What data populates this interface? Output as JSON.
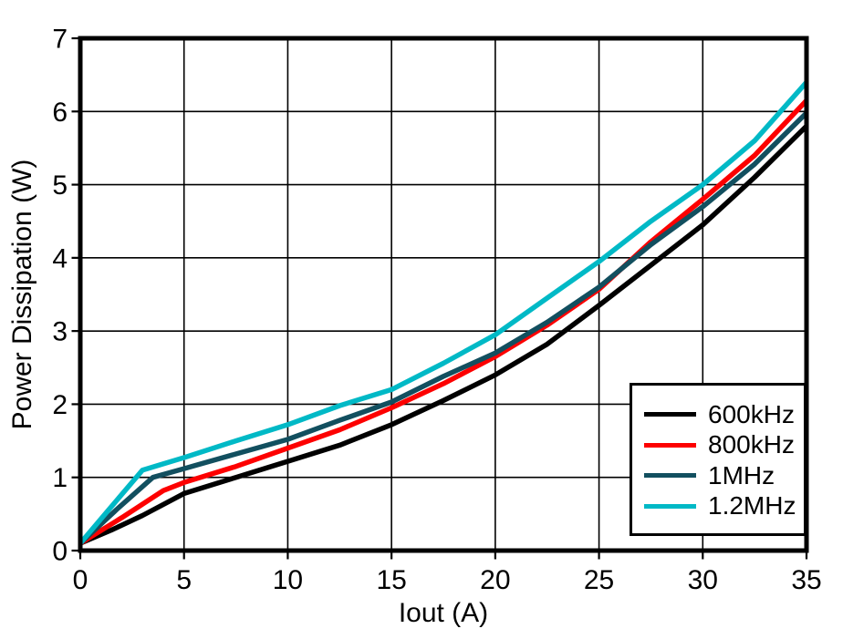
{
  "chart_data": {
    "type": "line",
    "title": "",
    "xlabel": "Iout (A)",
    "ylabel": "Power Dissipation (W)",
    "xlim": [
      0,
      35
    ],
    "ylim": [
      0,
      7
    ],
    "x_ticks": [
      0,
      5,
      10,
      15,
      20,
      25,
      30,
      35
    ],
    "y_ticks": [
      0,
      1,
      2,
      3,
      4,
      5,
      6,
      7
    ],
    "grid": true,
    "legend_position": "inside-bottom-right",
    "series": [
      {
        "name": "600kHz",
        "color": "#000000",
        "points": [
          [
            0,
            0.1
          ],
          [
            1.5,
            0.28
          ],
          [
            3,
            0.48
          ],
          [
            5,
            0.78
          ],
          [
            7.5,
            1.0
          ],
          [
            10,
            1.22
          ],
          [
            12.5,
            1.44
          ],
          [
            15,
            1.72
          ],
          [
            17.5,
            2.05
          ],
          [
            20,
            2.4
          ],
          [
            22.5,
            2.82
          ],
          [
            25,
            3.35
          ],
          [
            27.5,
            3.9
          ],
          [
            30,
            4.45
          ],
          [
            32.5,
            5.1
          ],
          [
            35,
            5.8
          ]
        ]
      },
      {
        "name": "800kHz",
        "color": "#fd0000",
        "points": [
          [
            0,
            0.1
          ],
          [
            2,
            0.45
          ],
          [
            4,
            0.82
          ],
          [
            5,
            0.93
          ],
          [
            7.5,
            1.15
          ],
          [
            10,
            1.4
          ],
          [
            12.5,
            1.65
          ],
          [
            15,
            1.95
          ],
          [
            17.5,
            2.28
          ],
          [
            20,
            2.65
          ],
          [
            22.5,
            3.08
          ],
          [
            25,
            3.57
          ],
          [
            27.5,
            4.22
          ],
          [
            30,
            4.8
          ],
          [
            32.5,
            5.4
          ],
          [
            35,
            6.15
          ]
        ]
      },
      {
        "name": "1MHz",
        "color": "#124f5f",
        "points": [
          [
            0,
            0.1
          ],
          [
            1.75,
            0.56
          ],
          [
            3.5,
            1.0
          ],
          [
            5,
            1.12
          ],
          [
            7.5,
            1.32
          ],
          [
            10,
            1.52
          ],
          [
            12.5,
            1.78
          ],
          [
            15,
            2.03
          ],
          [
            17.5,
            2.38
          ],
          [
            20,
            2.7
          ],
          [
            22.5,
            3.12
          ],
          [
            25,
            3.6
          ],
          [
            27.5,
            4.18
          ],
          [
            30,
            4.7
          ],
          [
            32.5,
            5.28
          ],
          [
            35,
            5.98
          ]
        ]
      },
      {
        "name": "1.2MHz",
        "color": "#00b9c6",
        "points": [
          [
            0,
            0.1
          ],
          [
            1.5,
            0.6
          ],
          [
            3,
            1.1
          ],
          [
            5,
            1.27
          ],
          [
            7.5,
            1.5
          ],
          [
            10,
            1.72
          ],
          [
            12.5,
            1.98
          ],
          [
            15,
            2.2
          ],
          [
            17.5,
            2.56
          ],
          [
            20,
            2.95
          ],
          [
            22.5,
            3.45
          ],
          [
            25,
            3.95
          ],
          [
            27.5,
            4.5
          ],
          [
            30,
            5.0
          ],
          [
            32.5,
            5.6
          ],
          [
            35,
            6.4
          ]
        ]
      }
    ],
    "colors": {
      "background": "#ffffff",
      "axis": "#000000",
      "grid": "#000000"
    }
  }
}
